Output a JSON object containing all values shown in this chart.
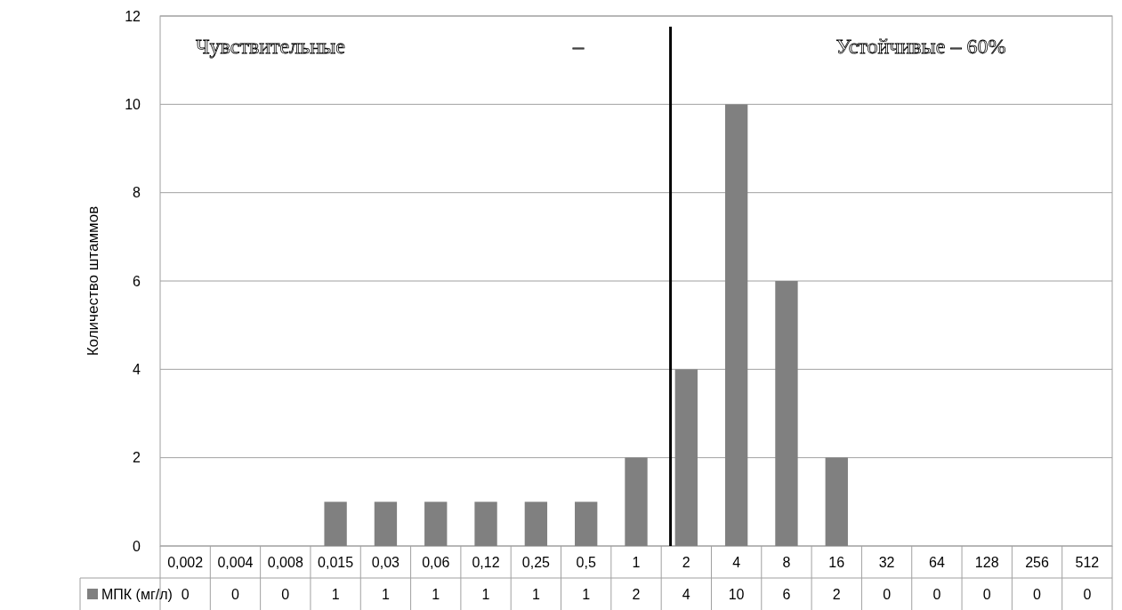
{
  "chart_data": {
    "type": "bar",
    "ylabel": "Количество штаммов",
    "categories": [
      "0,002",
      "0,004",
      "0,008",
      "0,015",
      "0,03",
      "0,06",
      "0,12",
      "0,25",
      "0,5",
      "1",
      "2",
      "4",
      "8",
      "16",
      "32",
      "64",
      "128",
      "256",
      "512"
    ],
    "series": [
      {
        "name": "МПК (мг/л)",
        "color": "#808080",
        "values": [
          0,
          0,
          0,
          1,
          1,
          1,
          1,
          1,
          1,
          2,
          4,
          10,
          6,
          2,
          0,
          0,
          0,
          0,
          0
        ]
      }
    ],
    "ylim": [
      0,
      12
    ],
    "yticks": [
      0,
      2,
      4,
      6,
      8,
      10,
      12
    ],
    "grid": "y",
    "data_labels": true,
    "ref_lines": [
      {
        "axis": "x",
        "value": "2",
        "color": "#000000"
      }
    ],
    "annotations": [
      "Чувствительные",
      "–",
      "Устойчивые – 60%"
    ]
  }
}
